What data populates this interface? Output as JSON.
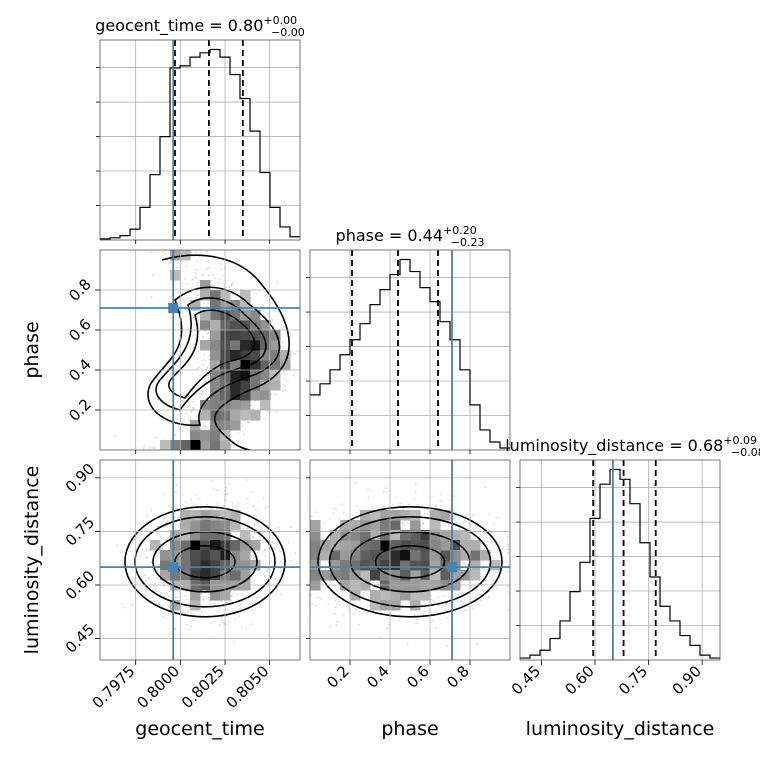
{
  "chart_data": {
    "type": "corner",
    "parameters": [
      "geocent_time",
      "phase",
      "luminosity_distance"
    ],
    "titles": {
      "geocent_time": {
        "label": "geocent_time",
        "median": "0.80",
        "plus": "+0.00",
        "minus": "−0.00"
      },
      "phase": {
        "label": "phase",
        "median": "0.44",
        "plus": "+0.20",
        "minus": "−0.23"
      },
      "luminosity_distance": {
        "label": "luminosity_distance",
        "median": "0.68",
        "plus": "+0.09",
        "minus": "−0.08"
      }
    },
    "axis_labels": {
      "x": [
        "geocent_time",
        "phase",
        "luminosity_distance"
      ],
      "y": [
        "phase",
        "luminosity_distance"
      ]
    },
    "ranges": {
      "geocent_time": [
        0.7955,
        0.8067
      ],
      "phase": [
        0.0,
        1.0
      ],
      "luminosity_distance": [
        0.39,
        0.95
      ]
    },
    "ticks": {
      "geocent_time": [
        "0.7975",
        "0.8000",
        "0.8025",
        "0.8050"
      ],
      "phase": [
        "0.2",
        "0.4",
        "0.6",
        "0.8"
      ],
      "luminosity_distance": [
        "0.45",
        "0.60",
        "0.75",
        "0.90"
      ]
    },
    "truths": {
      "geocent_time": 0.7996,
      "phase": 0.71,
      "luminosity_distance": 0.65
    },
    "quantiles": {
      "geocent_time": [
        0.7997,
        0.8016,
        0.8035
      ],
      "phase": [
        0.21,
        0.44,
        0.64
      ],
      "luminosity_distance": [
        0.595,
        0.68,
        0.77
      ]
    },
    "histograms": {
      "geocent_time": {
        "edges": [
          0.7955,
          0.79606,
          0.79662,
          0.79718,
          0.79774,
          0.7983,
          0.79886,
          0.79942,
          0.79998,
          0.80054,
          0.8011,
          0.80166,
          0.80222,
          0.80278,
          0.80334,
          0.8039,
          0.80446,
          0.80502,
          0.80558,
          0.80614,
          0.8067
        ],
        "counts": [
          1,
          2,
          4,
          10,
          30,
          60,
          95,
          158,
          160,
          168,
          172,
          175,
          168,
          152,
          130,
          100,
          62,
          30,
          12,
          3
        ]
      },
      "phase": {
        "edges": [
          0.0,
          0.05,
          0.1,
          0.15,
          0.2,
          0.25,
          0.3,
          0.35,
          0.4,
          0.45,
          0.5,
          0.55,
          0.6,
          0.65,
          0.7,
          0.75,
          0.8,
          0.85,
          0.9,
          0.95,
          1.0
        ],
        "counts": [
          55,
          66,
          80,
          95,
          110,
          126,
          145,
          160,
          175,
          190,
          178,
          162,
          148,
          128,
          110,
          80,
          45,
          20,
          8,
          2
        ]
      },
      "luminosity_distance": {
        "edges": [
          0.39,
          0.418,
          0.446,
          0.474,
          0.502,
          0.53,
          0.558,
          0.586,
          0.614,
          0.642,
          0.67,
          0.698,
          0.726,
          0.754,
          0.782,
          0.81,
          0.838,
          0.866,
          0.894,
          0.922,
          0.95
        ],
        "counts": [
          2,
          5,
          10,
          22,
          40,
          70,
          100,
          145,
          180,
          195,
          185,
          160,
          120,
          85,
          55,
          40,
          25,
          15,
          5,
          2
        ]
      }
    },
    "grid": true
  }
}
